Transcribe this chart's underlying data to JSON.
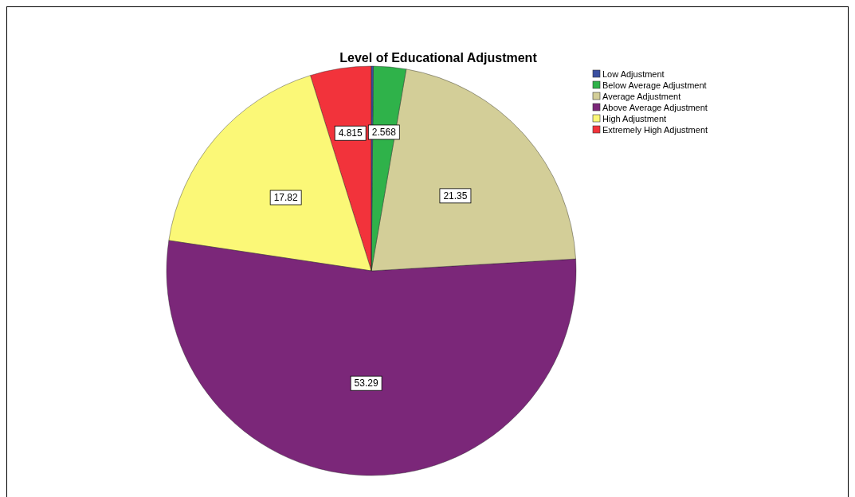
{
  "chart_data": {
    "type": "pie",
    "title": "Level of Educational Adjustment",
    "categories": [
      "Low Adjustment",
      "Below Average Adjustment",
      "Average Adjustment",
      "Above Average Adjustment",
      "High Adjustment",
      "Extremely High Adjustment"
    ],
    "values": [
      0.157,
      2.568,
      21.35,
      53.29,
      17.82,
      4.815
    ],
    "colors": [
      "#3a4fa0",
      "#2fb24a",
      "#d3ce98",
      "#7b2779",
      "#fbf877",
      "#f2333b"
    ],
    "value_labels": [
      null,
      "2.568",
      "21.35",
      "53.29",
      "17.82",
      "4.815"
    ],
    "legend": "top right"
  }
}
